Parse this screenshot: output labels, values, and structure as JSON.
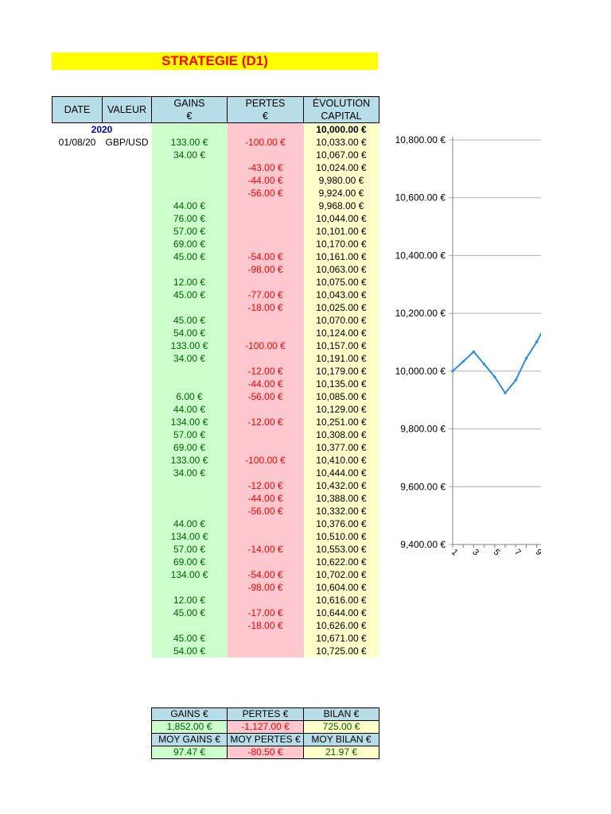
{
  "title": "STRATEGIE (D1)",
  "headers": {
    "date": "DATE",
    "valeur": "VALEUR",
    "gains_1": "GAINS",
    "gains_2": "€",
    "pertes_1": "PERTES",
    "pertes_2": "€",
    "capital_1": "ÉVOLUTION",
    "capital_2": "CAPITAL"
  },
  "year": "2020",
  "start_capital": "10,000.00 €",
  "rows": [
    {
      "date": "01/08/20",
      "valeur": "GBP/USD",
      "gain": "133.00 €",
      "perte": "-100.00 €",
      "capital": "10,033.00 €"
    },
    {
      "date": "",
      "valeur": "",
      "gain": "34.00 €",
      "perte": "",
      "capital": "10,067.00 €"
    },
    {
      "date": "",
      "valeur": "",
      "gain": "",
      "perte": "-43.00 €",
      "capital": "10,024.00 €"
    },
    {
      "date": "",
      "valeur": "",
      "gain": "",
      "perte": "-44.00 €",
      "capital": "9,980.00 €"
    },
    {
      "date": "",
      "valeur": "",
      "gain": "",
      "perte": "-56.00 €",
      "capital": "9,924.00 €"
    },
    {
      "date": "",
      "valeur": "",
      "gain": "44.00 €",
      "perte": "",
      "capital": "9,968.00 €"
    },
    {
      "date": "",
      "valeur": "",
      "gain": "76.00 €",
      "perte": "",
      "capital": "10,044.00 €"
    },
    {
      "date": "",
      "valeur": "",
      "gain": "57.00 €",
      "perte": "",
      "capital": "10,101.00 €"
    },
    {
      "date": "",
      "valeur": "",
      "gain": "69.00 €",
      "perte": "",
      "capital": "10,170.00 €"
    },
    {
      "date": "",
      "valeur": "",
      "gain": "45.00 €",
      "perte": "-54.00 €",
      "capital": "10,161.00 €"
    },
    {
      "date": "",
      "valeur": "",
      "gain": "",
      "perte": "-98.00 €",
      "capital": "10,063.00 €"
    },
    {
      "date": "",
      "valeur": "",
      "gain": "12.00 €",
      "perte": "",
      "capital": "10,075.00 €"
    },
    {
      "date": "",
      "valeur": "",
      "gain": "45.00 €",
      "perte": "-77.00 €",
      "capital": "10,043.00 €"
    },
    {
      "date": "",
      "valeur": "",
      "gain": "",
      "perte": "-18.00 €",
      "capital": "10,025.00 €"
    },
    {
      "date": "",
      "valeur": "",
      "gain": "45.00 €",
      "perte": "",
      "capital": "10,070.00 €"
    },
    {
      "date": "",
      "valeur": "",
      "gain": "54.00 €",
      "perte": "",
      "capital": "10,124.00 €"
    },
    {
      "date": "",
      "valeur": "",
      "gain": "133.00 €",
      "perte": "-100.00 €",
      "capital": "10,157.00 €"
    },
    {
      "date": "",
      "valeur": "",
      "gain": "34.00 €",
      "perte": "",
      "capital": "10,191.00 €"
    },
    {
      "date": "",
      "valeur": "",
      "gain": "",
      "perte": "-12.00 €",
      "capital": "10,179.00 €"
    },
    {
      "date": "",
      "valeur": "",
      "gain": "",
      "perte": "-44.00 €",
      "capital": "10,135.00 €"
    },
    {
      "date": "",
      "valeur": "",
      "gain": "6.00 €",
      "perte": "-56.00 €",
      "capital": "10,085.00 €"
    },
    {
      "date": "",
      "valeur": "",
      "gain": "44.00 €",
      "perte": "",
      "capital": "10,129.00 €"
    },
    {
      "date": "",
      "valeur": "",
      "gain": "134.00 €",
      "perte": "-12.00 €",
      "capital": "10,251.00 €"
    },
    {
      "date": "",
      "valeur": "",
      "gain": "57.00 €",
      "perte": "",
      "capital": "10,308.00 €"
    },
    {
      "date": "",
      "valeur": "",
      "gain": "69.00 €",
      "perte": "",
      "capital": "10,377.00 €"
    },
    {
      "date": "",
      "valeur": "",
      "gain": "133.00 €",
      "perte": "-100.00 €",
      "capital": "10,410.00 €"
    },
    {
      "date": "",
      "valeur": "",
      "gain": "34.00 €",
      "perte": "",
      "capital": "10,444.00 €"
    },
    {
      "date": "",
      "valeur": "",
      "gain": "",
      "perte": "-12.00 €",
      "capital": "10,432.00 €"
    },
    {
      "date": "",
      "valeur": "",
      "gain": "",
      "perte": "-44.00 €",
      "capital": "10,388.00 €"
    },
    {
      "date": "",
      "valeur": "",
      "gain": "",
      "perte": "-56.00 €",
      "capital": "10,332.00 €"
    },
    {
      "date": "",
      "valeur": "",
      "gain": "44.00 €",
      "perte": "",
      "capital": "10,376.00 €"
    },
    {
      "date": "",
      "valeur": "",
      "gain": "134.00 €",
      "perte": "",
      "capital": "10,510.00 €"
    },
    {
      "date": "",
      "valeur": "",
      "gain": "57.00 €",
      "perte": "-14.00 €",
      "capital": "10,553.00 €"
    },
    {
      "date": "",
      "valeur": "",
      "gain": "69.00 €",
      "perte": "",
      "capital": "10,622.00 €"
    },
    {
      "date": "",
      "valeur": "",
      "gain": "134.00 €",
      "perte": "-54.00 €",
      "capital": "10,702.00 €"
    },
    {
      "date": "",
      "valeur": "",
      "gain": "",
      "perte": "-98.00 €",
      "capital": "10,604.00 €"
    },
    {
      "date": "",
      "valeur": "",
      "gain": "12.00 €",
      "perte": "",
      "capital": "10,616.00 €"
    },
    {
      "date": "",
      "valeur": "",
      "gain": "45.00 €",
      "perte": "-17.00 €",
      "capital": "10,644.00 €"
    },
    {
      "date": "",
      "valeur": "",
      "gain": "",
      "perte": "-18.00 €",
      "capital": "10,626.00 €"
    },
    {
      "date": "",
      "valeur": "",
      "gain": "45.00 €",
      "perte": "",
      "capital": "10,671.00 €"
    },
    {
      "date": "",
      "valeur": "",
      "gain": "54.00 €",
      "perte": "",
      "capital": "10,725.00 €"
    }
  ],
  "summary": {
    "h1": {
      "gains": "GAINS €",
      "pertes": "PERTES €",
      "bilan": "BILAN €"
    },
    "v1": {
      "gains": "1,852.00 €",
      "pertes": "-1,127.00 €",
      "bilan": "725.00 €"
    },
    "h2": {
      "gains": "MOY GAINS €",
      "pertes": "MOY PERTES €",
      "bilan": "MOY BILAN €"
    },
    "v2": {
      "gains": "97.47 €",
      "pertes": "-80.50 €",
      "bilan": "21.97 €"
    }
  },
  "colors": {
    "title_bg": "#ffff00",
    "title_text": "#ff0000",
    "header_bg": "#b7dde8",
    "gain_bg": "#ccffcc",
    "gain_text": "#006100",
    "loss_bg": "#ffc7ce",
    "loss_text": "#ff0000",
    "capital_bg": "#ffffcc",
    "series": "#2e8ae6"
  },
  "chart_data": {
    "type": "line",
    "x": [
      1,
      2,
      3,
      4,
      5,
      6,
      7,
      8,
      9,
      10
    ],
    "series": [
      {
        "values": [
          10000,
          10033,
          10067,
          10024,
          9980,
          9924,
          9968,
          10044,
          10101,
          10170
        ]
      }
    ],
    "x_tick_labels": [
      "1",
      "3",
      "5",
      "7",
      "9"
    ],
    "y_tick_labels": [
      "10,800.00 €",
      "10,600.00 €",
      "10,400.00 €",
      "10,200.00 €",
      "10,000.00 €",
      "9,800.00 €",
      "9,600.00 €",
      "9,400.00 €"
    ],
    "ylim": [
      9400,
      10800
    ],
    "grid": true,
    "legend": "none"
  }
}
